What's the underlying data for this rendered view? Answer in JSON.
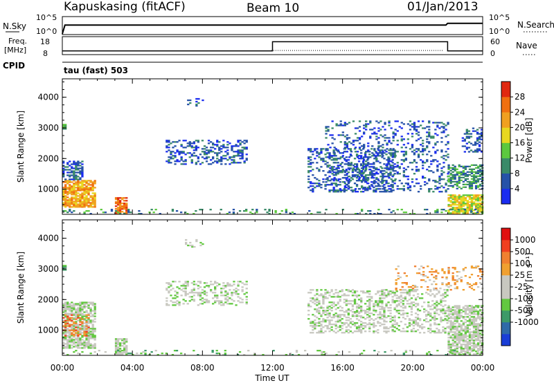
{
  "header": {
    "station": "Kapuskasing (fitACF)",
    "beam": "Beam 10",
    "date": "01/Jan/2013",
    "panel_label": "tau (fast) 503"
  },
  "status_panels": {
    "nsky": {
      "label": "N.Sky",
      "ticks": [
        "10^5",
        "10^0"
      ],
      "right_label": "N.Search",
      "right_ticks": [
        "10^5",
        "10^0"
      ]
    },
    "freq": {
      "label": "Freq.",
      "unit": "[MHz]",
      "ticks": [
        "18",
        "8"
      ],
      "right_label": "Nave",
      "right_ticks": [
        "60",
        "0"
      ]
    },
    "cpid_label": "CPID"
  },
  "x_axis": {
    "label": "Time UT",
    "ticks": [
      "00:00",
      "04:00",
      "08:00",
      "12:00",
      "16:00",
      "20:00",
      "00:00"
    ],
    "range_hours": [
      0,
      24
    ]
  },
  "chart_data": [
    {
      "type": "heatmap",
      "panel": "power",
      "ylabel": "Slant Range [km]",
      "ylim": [
        180,
        4600
      ],
      "yticks": [
        1000,
        2000,
        3000,
        4000
      ],
      "colorbar": {
        "label": "Power [dB]",
        "ticks": [
          "4",
          "8",
          "12",
          "16",
          "20",
          "24",
          "28"
        ],
        "colors": [
          "#1a2cf0",
          "#2652a8",
          "#3a8a68",
          "#5cc83e",
          "#e8d820",
          "#f0a020",
          "#f07010",
          "#e02810"
        ]
      },
      "regions": [
        {
          "t": [
            0.0,
            1.9
          ],
          "r": [
            400,
            1300
          ],
          "level": 5,
          "density": 0.8
        },
        {
          "t": [
            0.0,
            1.2
          ],
          "r": [
            1300,
            1900
          ],
          "level": 1,
          "density": 0.6
        },
        {
          "t": [
            0.0,
            0.15
          ],
          "r": [
            2950,
            3100
          ],
          "level": 2,
          "density": 0.9
        },
        {
          "t": [
            3.0,
            3.7
          ],
          "r": [
            200,
            700
          ],
          "level": 6,
          "density": 0.8
        },
        {
          "t": [
            5.9,
            10.5
          ],
          "r": [
            1800,
            2600
          ],
          "level": 1,
          "density": 0.35
        },
        {
          "t": [
            7.0,
            8.0
          ],
          "r": [
            3700,
            3950
          ],
          "level": 1,
          "density": 0.25
        },
        {
          "t": [
            14.0,
            19.0
          ],
          "r": [
            900,
            2300
          ],
          "level": 1,
          "density": 0.3
        },
        {
          "t": [
            15.0,
            22.0
          ],
          "r": [
            900,
            3200
          ],
          "level": 1,
          "density": 0.22
        },
        {
          "t": [
            22.0,
            24.0
          ],
          "r": [
            200,
            800
          ],
          "level": 4,
          "density": 0.8
        },
        {
          "t": [
            22.0,
            24.0
          ],
          "r": [
            1000,
            1800
          ],
          "level": 2,
          "density": 0.55
        },
        {
          "t": [
            22.8,
            24.0
          ],
          "r": [
            2200,
            3000
          ],
          "level": 1,
          "density": 0.35
        },
        {
          "t": [
            0.0,
            24.0
          ],
          "r": [
            180,
            330
          ],
          "level": 2,
          "density": 0.15
        }
      ]
    },
    {
      "type": "heatmap",
      "panel": "velocity",
      "ylabel": "Slant Range [km]",
      "ylim": [
        180,
        4600
      ],
      "yticks": [
        1000,
        2000,
        3000,
        4000
      ],
      "colorbar": {
        "label": "Velocity [m s⁻¹]",
        "ticks": [
          "1000",
          "500",
          "100",
          "25",
          "-25",
          "-100",
          "-500",
          "-1000"
        ],
        "colors": [
          "#1a3ed6",
          "#2f6aa8",
          "#3d9a68",
          "#62c840",
          "#c8c8c0",
          "#c8c8c0",
          "#f0a030",
          "#f08030",
          "#f04020",
          "#e01010"
        ]
      },
      "regions": [
        {
          "t": [
            0.0,
            1.9
          ],
          "r": [
            400,
            1900
          ],
          "level": 4,
          "density": 0.75
        },
        {
          "t": [
            0.0,
            1.5
          ],
          "r": [
            800,
            1500
          ],
          "level": 7,
          "density": 0.3
        },
        {
          "t": [
            0.0,
            0.15
          ],
          "r": [
            2950,
            3100
          ],
          "level": 3,
          "density": 0.9
        },
        {
          "t": [
            3.0,
            3.7
          ],
          "r": [
            200,
            700
          ],
          "level": 4,
          "density": 0.8
        },
        {
          "t": [
            5.9,
            10.5
          ],
          "r": [
            1800,
            2600
          ],
          "level": 4,
          "density": 0.35
        },
        {
          "t": [
            7.0,
            8.0
          ],
          "r": [
            3700,
            3950
          ],
          "level": 4,
          "density": 0.25
        },
        {
          "t": [
            14.0,
            22.0
          ],
          "r": [
            900,
            2300
          ],
          "level": 4,
          "density": 0.35
        },
        {
          "t": [
            19.0,
            24.0
          ],
          "r": [
            2300,
            3100
          ],
          "level": 6,
          "density": 0.18
        },
        {
          "t": [
            22.0,
            24.0
          ],
          "r": [
            200,
            1800
          ],
          "level": 4,
          "density": 0.7
        },
        {
          "t": [
            0.0,
            24.0
          ],
          "r": [
            180,
            330
          ],
          "level": 3,
          "density": 0.12
        }
      ]
    }
  ],
  "status_series": {
    "nsky_level": [
      [
        0,
        0.0
      ],
      [
        0.15,
        0.8
      ],
      [
        21.9,
        0.8
      ],
      [
        22.0,
        0.95
      ],
      [
        24,
        0.95
      ]
    ],
    "freq_mhz": [
      [
        0,
        10
      ],
      [
        12.0,
        10
      ],
      [
        12.0,
        16
      ],
      [
        22.0,
        16
      ],
      [
        22.0,
        10
      ],
      [
        24,
        10
      ]
    ]
  }
}
